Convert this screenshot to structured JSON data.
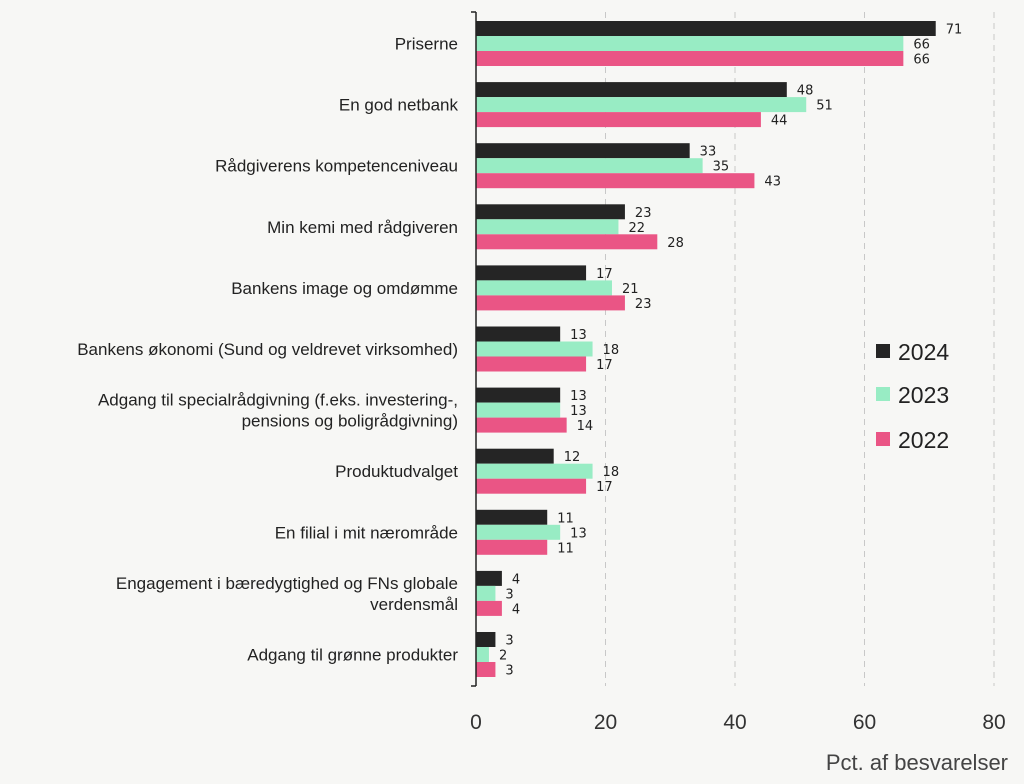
{
  "chart_data": {
    "type": "bar",
    "orientation": "horizontal",
    "categories": [
      [
        "Priserne"
      ],
      [
        "En god netbank"
      ],
      [
        "Rådgiverens kompetenceniveau"
      ],
      [
        "Min kemi med rådgiveren"
      ],
      [
        "Bankens image og omdømme"
      ],
      [
        "Bankens økonomi (Sund og veldrevet virksomhed)"
      ],
      [
        "Adgang til specialrådgivning (f.eks. investering-,",
        "pensions og boligrådgivning)"
      ],
      [
        "Produktudvalget"
      ],
      [
        "En filial i mit nærområde"
      ],
      [
        "Engagement i bæredygtighed og FNs globale",
        "verdensmål"
      ],
      [
        "Adgang til grønne produkter"
      ]
    ],
    "series": [
      {
        "name": "2024",
        "color": "#252525",
        "values": [
          71,
          48,
          33,
          23,
          17,
          13,
          13,
          12,
          11,
          4,
          3
        ]
      },
      {
        "name": "2023",
        "color": "#98ecc4",
        "values": [
          66,
          51,
          35,
          22,
          21,
          18,
          13,
          18,
          13,
          3,
          2
        ]
      },
      {
        "name": "2022",
        "color": "#ea5585",
        "values": [
          66,
          44,
          43,
          28,
          23,
          17,
          14,
          17,
          11,
          4,
          3
        ]
      }
    ],
    "xlim": [
      0,
      80
    ],
    "xticks": [
      0,
      20,
      40,
      60,
      80
    ],
    "xlabel": "Pct. af besvarelser",
    "grid": "vertical dashed",
    "legend_position": "right"
  }
}
